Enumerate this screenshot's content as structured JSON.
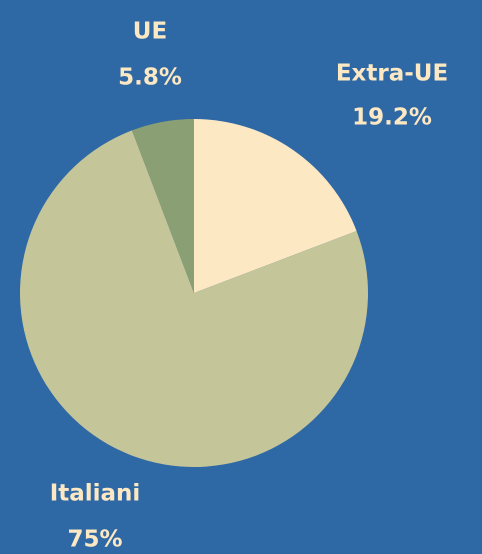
{
  "chart_data": {
    "type": "pie",
    "categories": [
      "Extra-UE",
      "Italiani",
      "UE"
    ],
    "values": [
      19.2,
      75,
      5.8
    ],
    "value_labels": [
      "19.2%",
      "75%",
      "5.8%"
    ],
    "colors": [
      "#fde8c4",
      "#c5c59a",
      "#8a9f74"
    ]
  }
}
